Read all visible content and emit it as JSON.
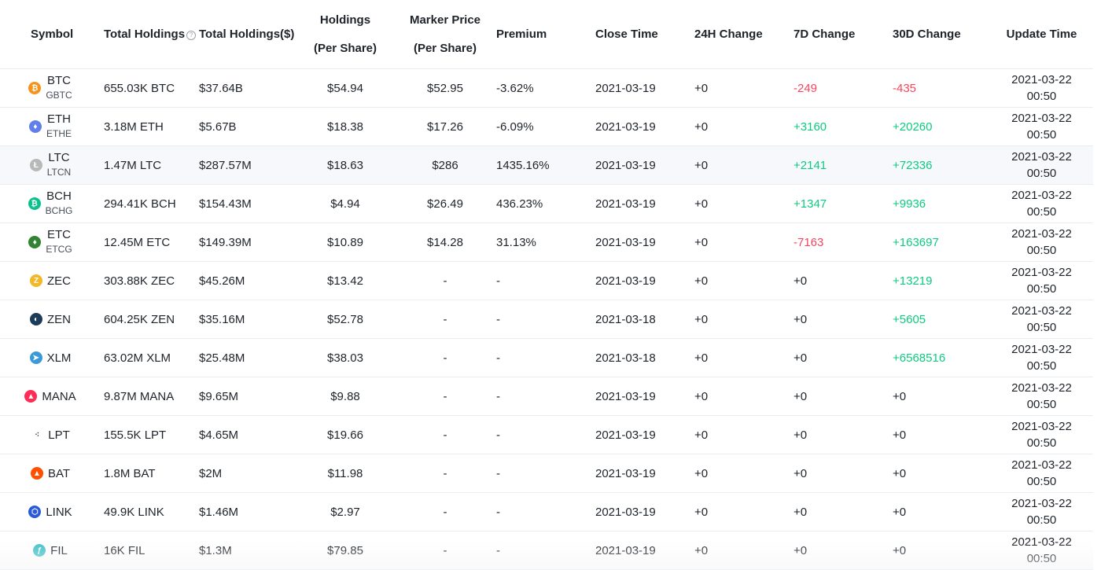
{
  "headers": {
    "symbol": "Symbol",
    "total_holdings": "Total Holdings",
    "total_holdings_usd": "Total Holdings($)",
    "holdings_line1": "Holdings",
    "holdings_line2": "(Per Share)",
    "marker_line1": "Marker Price",
    "marker_line2": "(Per Share)",
    "premium": "Premium",
    "close_time": "Close Time",
    "change_24h": "24H Change",
    "change_7d": "7D Change",
    "change_30d": "30D Change",
    "update_time": "Update Time",
    "help_glyph": "?"
  },
  "rows": [
    {
      "symbol": "BTC",
      "sub": "GBTC",
      "icon": "bitcoin-icon",
      "glyph": "₿",
      "color": "#f7931a",
      "total": "655.03K BTC",
      "total_usd": "$37.64B",
      "holdings": "$54.94",
      "marker": "$52.95",
      "premium": "-3.62%",
      "close": "2021-03-19",
      "c24": "+0",
      "c7": "-249",
      "c30": "-435",
      "upd_date": "2021-03-22",
      "upd_time": "00:50"
    },
    {
      "symbol": "ETH",
      "sub": "ETHE",
      "icon": "ethereum-icon",
      "glyph": "♦",
      "color": "#627eea",
      "total": "3.18M ETH",
      "total_usd": "$5.67B",
      "holdings": "$18.38",
      "marker": "$17.26",
      "premium": "-6.09%",
      "close": "2021-03-19",
      "c24": "+0",
      "c7": "+3160",
      "c30": "+20260",
      "upd_date": "2021-03-22",
      "upd_time": "00:50"
    },
    {
      "symbol": "LTC",
      "sub": "LTCN",
      "icon": "litecoin-icon",
      "glyph": "Ł",
      "color": "#b8b8b8",
      "total": "1.47M LTC",
      "total_usd": "$287.57M",
      "holdings": "$18.63",
      "marker": "$286",
      "premium": "1435.16%",
      "close": "2021-03-19",
      "c24": "+0",
      "c7": "+2141",
      "c30": "+72336",
      "upd_date": "2021-03-22",
      "upd_time": "00:50"
    },
    {
      "symbol": "BCH",
      "sub": "BCHG",
      "icon": "bitcoin-cash-icon",
      "glyph": "₿",
      "color": "#0ac18e",
      "total": "294.41K BCH",
      "total_usd": "$154.43M",
      "holdings": "$4.94",
      "marker": "$26.49",
      "premium": "436.23%",
      "close": "2021-03-19",
      "c24": "+0",
      "c7": "+1347",
      "c30": "+9936",
      "upd_date": "2021-03-22",
      "upd_time": "00:50"
    },
    {
      "symbol": "ETC",
      "sub": "ETCG",
      "icon": "ethereum-classic-icon",
      "glyph": "♦",
      "color": "#328332",
      "total": "12.45M ETC",
      "total_usd": "$149.39M",
      "holdings": "$10.89",
      "marker": "$14.28",
      "premium": "31.13%",
      "close": "2021-03-19",
      "c24": "+0",
      "c7": "-7163",
      "c30": "+163697",
      "upd_date": "2021-03-22",
      "upd_time": "00:50"
    },
    {
      "symbol": "ZEC",
      "sub": "",
      "icon": "zcash-icon",
      "glyph": "Z",
      "color": "#f4b728",
      "total": "303.88K ZEC",
      "total_usd": "$45.26M",
      "holdings": "$13.42",
      "marker": "-",
      "premium": "-",
      "close": "2021-03-19",
      "c24": "+0",
      "c7": "+0",
      "c30": "+13219",
      "upd_date": "2021-03-22",
      "upd_time": "00:50"
    },
    {
      "symbol": "ZEN",
      "sub": "",
      "icon": "horizen-icon",
      "glyph": "◐",
      "color": "#1c3a5a",
      "total": "604.25K ZEN",
      "total_usd": "$35.16M",
      "holdings": "$52.78",
      "marker": "-",
      "premium": "-",
      "close": "2021-03-18",
      "c24": "+0",
      "c7": "+0",
      "c30": "+5605",
      "upd_date": "2021-03-22",
      "upd_time": "00:50"
    },
    {
      "symbol": "XLM",
      "sub": "",
      "icon": "stellar-icon",
      "glyph": "➤",
      "color": "#3a9ad9",
      "total": "63.02M XLM",
      "total_usd": "$25.48M",
      "holdings": "$38.03",
      "marker": "-",
      "premium": "-",
      "close": "2021-03-18",
      "c24": "+0",
      "c7": "+0",
      "c30": "+6568516",
      "upd_date": "2021-03-22",
      "upd_time": "00:50"
    },
    {
      "symbol": "MANA",
      "sub": "",
      "icon": "decentraland-icon",
      "glyph": "▲",
      "color": "#ff2d55",
      "total": "9.87M MANA",
      "total_usd": "$9.65M",
      "holdings": "$9.88",
      "marker": "-",
      "premium": "-",
      "close": "2021-03-19",
      "c24": "+0",
      "c7": "+0",
      "c30": "+0",
      "upd_date": "2021-03-22",
      "upd_time": "00:50"
    },
    {
      "symbol": "LPT",
      "sub": "",
      "icon": "livepeer-icon",
      "glyph": "⁖",
      "color": "#ffffff",
      "total": "155.5K LPT",
      "total_usd": "$4.65M",
      "holdings": "$19.66",
      "marker": "-",
      "premium": "-",
      "close": "2021-03-19",
      "c24": "+0",
      "c7": "+0",
      "c30": "+0",
      "upd_date": "2021-03-22",
      "upd_time": "00:50"
    },
    {
      "symbol": "BAT",
      "sub": "",
      "icon": "basic-attention-token-icon",
      "glyph": "▲",
      "color": "#ff5000",
      "total": "1.8M BAT",
      "total_usd": "$2M",
      "holdings": "$11.98",
      "marker": "-",
      "premium": "-",
      "close": "2021-03-19",
      "c24": "+0",
      "c7": "+0",
      "c30": "+0",
      "upd_date": "2021-03-22",
      "upd_time": "00:50"
    },
    {
      "symbol": "LINK",
      "sub": "",
      "icon": "chainlink-icon",
      "glyph": "⬡",
      "color": "#2a5ada",
      "total": "49.9K LINK",
      "total_usd": "$1.46M",
      "holdings": "$2.97",
      "marker": "-",
      "premium": "-",
      "close": "2021-03-19",
      "c24": "+0",
      "c7": "+0",
      "c30": "+0",
      "upd_date": "2021-03-22",
      "upd_time": "00:50"
    },
    {
      "symbol": "FIL",
      "sub": "",
      "icon": "filecoin-icon",
      "glyph": "ƒ",
      "color": "#42c1ca",
      "total": "16K FIL",
      "total_usd": "$1.3M",
      "holdings": "$79.85",
      "marker": "-",
      "premium": "-",
      "close": "2021-03-19",
      "c24": "+0",
      "c7": "+0",
      "c30": "+0",
      "upd_date": "2021-03-22",
      "upd_time": "00:50"
    }
  ],
  "colors": {
    "negative": "#f6465d",
    "positive": "#0ecb81",
    "highlight_row": "#f6f8fb"
  }
}
